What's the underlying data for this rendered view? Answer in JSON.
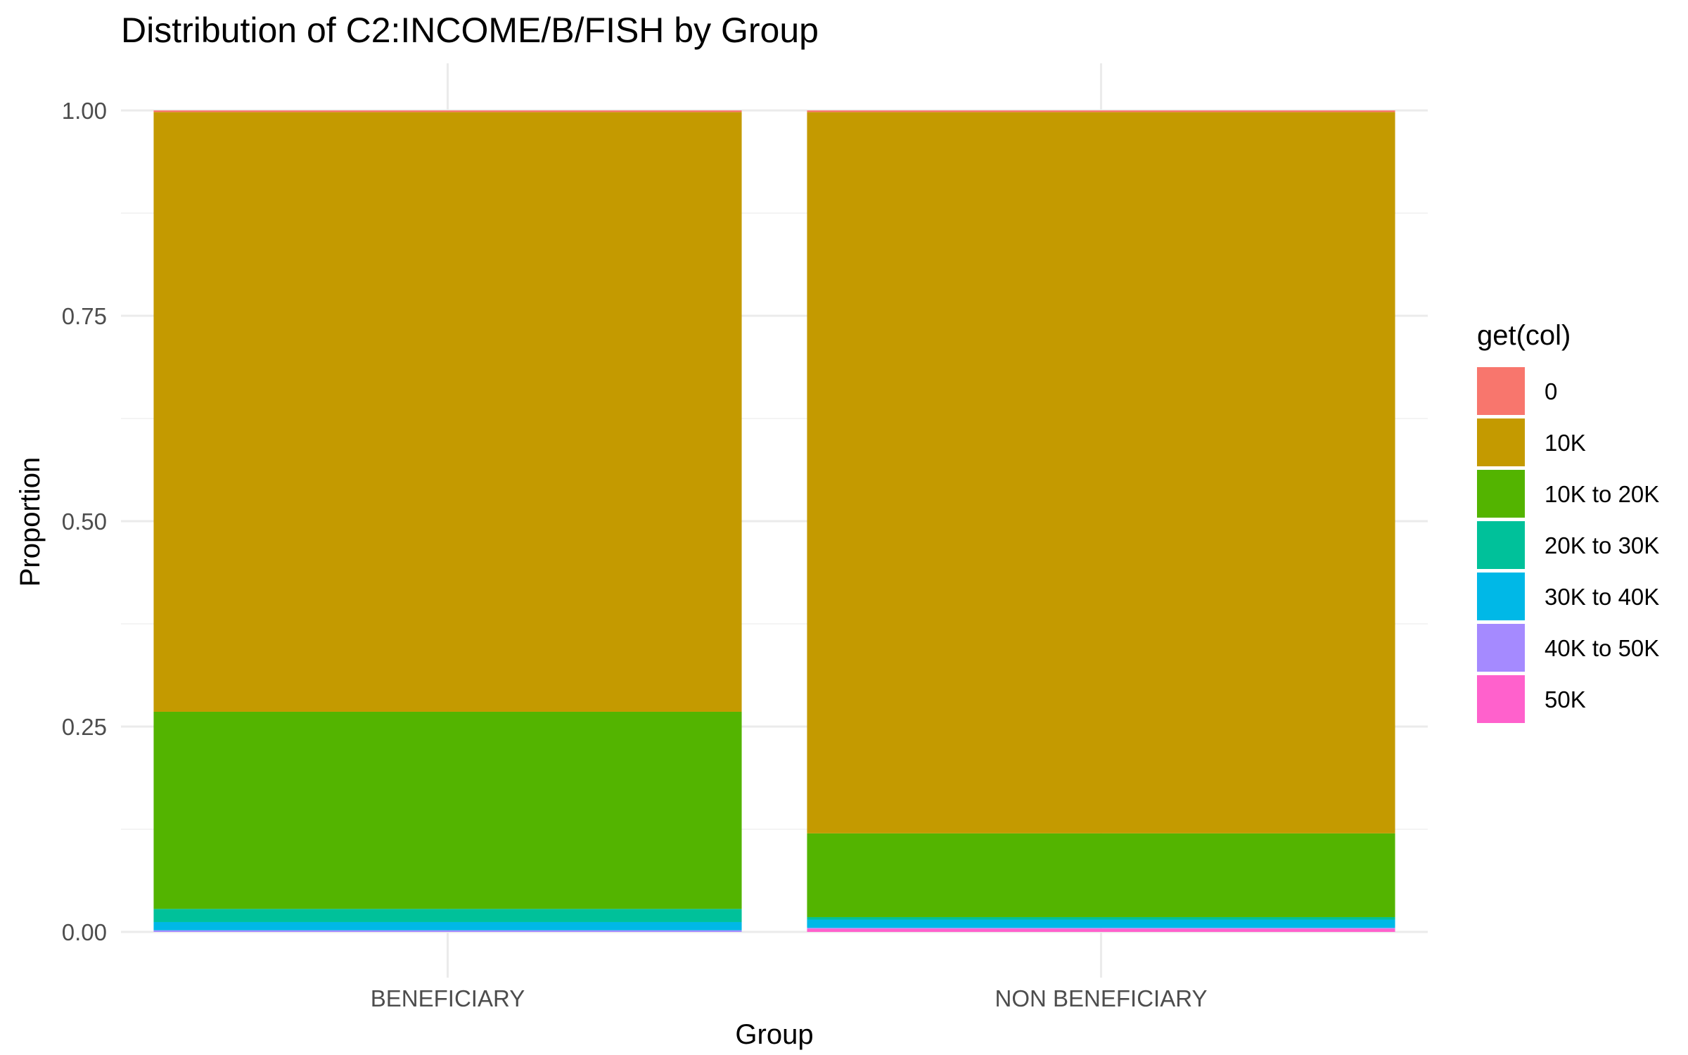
{
  "chart_data": {
    "type": "bar",
    "stacked": true,
    "title": "Distribution of C2:INCOME/B/FISH by Group",
    "xlabel": "Group",
    "ylabel": "Proportion",
    "ylim": [
      0,
      1
    ],
    "yticks": [
      "0.00",
      "0.25",
      "0.50",
      "0.75",
      "1.00"
    ],
    "grid": true,
    "legend": {
      "title": "get(col)",
      "placement": "right"
    },
    "categories": [
      "BENEFICIARY",
      "NON BENEFICIARY"
    ],
    "series": [
      {
        "name": "50K",
        "color": "#FF61CC",
        "values": [
          0.0,
          0.004
        ]
      },
      {
        "name": "40K to 50K",
        "color": "#A58AFF",
        "values": [
          0.002,
          0.001
        ]
      },
      {
        "name": "30K to 40K",
        "color": "#00B8E7",
        "values": [
          0.01,
          0.01
        ]
      },
      {
        "name": "20K to 30K",
        "color": "#00C19A",
        "values": [
          0.016,
          0.003
        ]
      },
      {
        "name": "10K to 20K",
        "color": "#53B400",
        "values": [
          0.24,
          0.102
        ]
      },
      {
        "name": "10K",
        "color": "#C49A00",
        "values": [
          0.73,
          0.878
        ]
      },
      {
        "name": "0",
        "color": "#F8766D",
        "values": [
          0.002,
          0.002
        ]
      }
    ],
    "legend_order": [
      "0",
      "10K",
      "10K to 20K",
      "20K to 30K",
      "30K to 40K",
      "40K to 50K",
      "50K"
    ]
  }
}
